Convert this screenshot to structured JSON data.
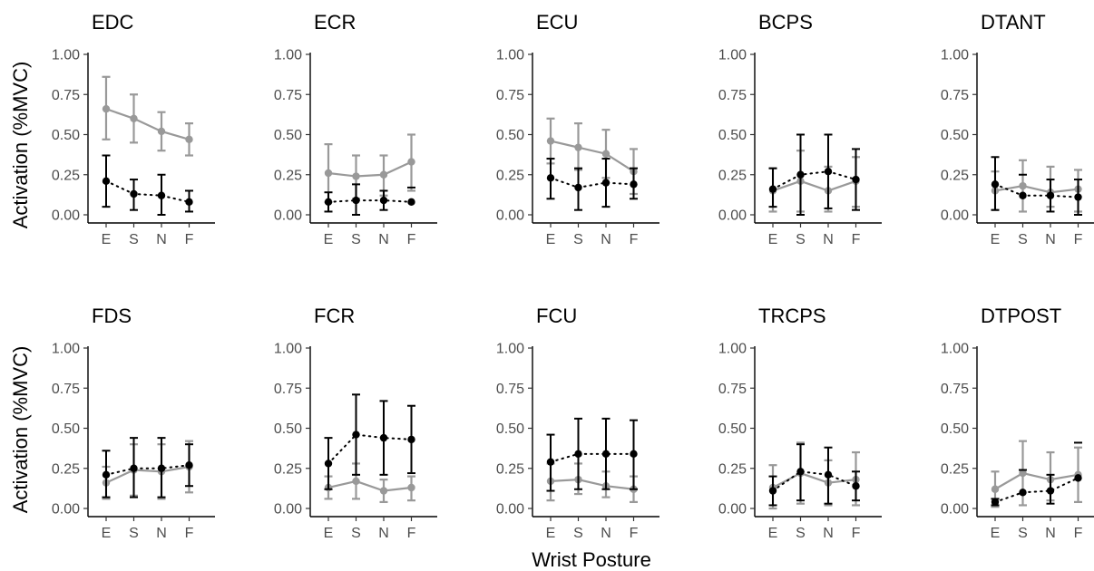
{
  "figure": {
    "ylabel": "Activation (%MVC)",
    "xlabel": "Wrist Posture"
  },
  "colors": {
    "light_series": "#999999",
    "dark_series": "#000000"
  },
  "chart_data": [
    {
      "type": "line",
      "title": "EDC",
      "categories": [
        "E",
        "S",
        "N",
        "F"
      ],
      "ylim": [
        0,
        1
      ],
      "yticks": [
        "0.00",
        "0.25",
        "0.50",
        "0.75",
        "1.00"
      ],
      "grid": false,
      "series": [
        {
          "style": "solid",
          "color": "#999999",
          "values": [
            0.66,
            0.6,
            0.52,
            0.47
          ],
          "err_low": [
            0.47,
            0.45,
            0.4,
            0.37
          ],
          "err_high": [
            0.86,
            0.75,
            0.64,
            0.57
          ]
        },
        {
          "style": "dotted",
          "color": "#000000",
          "values": [
            0.21,
            0.13,
            0.12,
            0.08
          ],
          "err_low": [
            0.05,
            0.03,
            0.0,
            0.02
          ],
          "err_high": [
            0.37,
            0.22,
            0.25,
            0.15
          ]
        }
      ]
    },
    {
      "type": "line",
      "title": "ECR",
      "categories": [
        "E",
        "S",
        "N",
        "F"
      ],
      "ylim": [
        0,
        1
      ],
      "yticks": [
        "0.00",
        "0.25",
        "0.50",
        "0.75",
        "1.00"
      ],
      "grid": false,
      "series": [
        {
          "style": "solid",
          "color": "#999999",
          "values": [
            0.26,
            0.24,
            0.25,
            0.33
          ],
          "err_low": [
            0.08,
            0.1,
            0.12,
            0.15
          ],
          "err_high": [
            0.44,
            0.37,
            0.37,
            0.5
          ]
        },
        {
          "style": "dotted",
          "color": "#000000",
          "values": [
            0.08,
            0.09,
            0.09,
            0.08
          ],
          "err_low": [
            0.02,
            0.0,
            0.03,
            null
          ],
          "err_high": [
            0.14,
            0.19,
            0.15,
            0.17
          ]
        }
      ]
    },
    {
      "type": "line",
      "title": "ECU",
      "categories": [
        "E",
        "S",
        "N",
        "F"
      ],
      "ylim": [
        0,
        1
      ],
      "yticks": [
        "0.00",
        "0.25",
        "0.50",
        "0.75",
        "1.00"
      ],
      "grid": false,
      "series": [
        {
          "style": "solid",
          "color": "#999999",
          "values": [
            0.46,
            0.42,
            0.38,
            0.27
          ],
          "err_low": [
            0.32,
            0.28,
            0.23,
            0.13
          ],
          "err_high": [
            0.6,
            0.57,
            0.53,
            0.41
          ]
        },
        {
          "style": "dotted",
          "color": "#000000",
          "values": [
            0.23,
            0.17,
            0.2,
            0.19
          ],
          "err_low": [
            0.1,
            0.03,
            0.05,
            0.1
          ],
          "err_high": [
            0.35,
            0.29,
            0.35,
            0.29
          ]
        }
      ]
    },
    {
      "type": "line",
      "title": "BCPS",
      "categories": [
        "E",
        "S",
        "N",
        "F"
      ],
      "ylim": [
        0,
        1
      ],
      "yticks": [
        "0.00",
        "0.25",
        "0.50",
        "0.75",
        "1.00"
      ],
      "grid": false,
      "series": [
        {
          "style": "solid",
          "color": "#999999",
          "values": [
            0.15,
            0.21,
            0.15,
            0.21
          ],
          "err_low": [
            0.02,
            0.02,
            0.02,
            0.05
          ],
          "err_high": [
            0.29,
            0.4,
            0.3,
            0.36
          ]
        },
        {
          "style": "dotted",
          "color": "#000000",
          "values": [
            0.16,
            0.25,
            0.27,
            0.22
          ],
          "err_low": [
            0.05,
            0.0,
            0.04,
            0.03
          ],
          "err_high": [
            0.29,
            0.5,
            0.5,
            0.41
          ]
        }
      ]
    },
    {
      "type": "line",
      "title": "DTANT",
      "categories": [
        "E",
        "S",
        "N",
        "F"
      ],
      "ylim": [
        0,
        1
      ],
      "yticks": [
        "0.00",
        "0.25",
        "0.50",
        "0.75",
        "1.00"
      ],
      "grid": false,
      "series": [
        {
          "style": "solid",
          "color": "#999999",
          "values": [
            0.15,
            0.18,
            0.14,
            0.16
          ],
          "err_low": [
            0.03,
            0.02,
            0.05,
            0.02
          ],
          "err_high": [
            0.27,
            0.34,
            0.3,
            0.28
          ]
        },
        {
          "style": "dotted",
          "color": "#000000",
          "values": [
            0.19,
            0.12,
            0.12,
            0.11
          ],
          "err_low": [
            0.03,
            null,
            0.02,
            0.0
          ],
          "err_high": [
            0.36,
            0.25,
            0.22,
            0.22
          ]
        }
      ]
    },
    {
      "type": "line",
      "title": "FDS",
      "categories": [
        "E",
        "S",
        "N",
        "F"
      ],
      "ylim": [
        0,
        1
      ],
      "yticks": [
        "0.00",
        "0.25",
        "0.50",
        "0.75",
        "1.00"
      ],
      "grid": false,
      "series": [
        {
          "style": "solid",
          "color": "#999999",
          "values": [
            0.16,
            0.24,
            0.23,
            0.26
          ],
          "err_low": [
            0.06,
            0.08,
            0.06,
            0.1
          ],
          "err_high": [
            0.26,
            0.4,
            0.4,
            0.42
          ]
        },
        {
          "style": "dotted",
          "color": "#000000",
          "values": [
            0.21,
            0.25,
            0.25,
            0.27
          ],
          "err_low": [
            0.07,
            0.07,
            0.07,
            0.14
          ],
          "err_high": [
            0.36,
            0.44,
            0.44,
            0.4
          ]
        }
      ]
    },
    {
      "type": "line",
      "title": "FCR",
      "categories": [
        "E",
        "S",
        "N",
        "F"
      ],
      "ylim": [
        0,
        1
      ],
      "yticks": [
        "0.00",
        "0.25",
        "0.50",
        "0.75",
        "1.00"
      ],
      "grid": false,
      "series": [
        {
          "style": "solid",
          "color": "#999999",
          "values": [
            0.13,
            0.17,
            0.11,
            0.13
          ],
          "err_low": [
            0.06,
            0.06,
            0.04,
            0.05
          ],
          "err_high": [
            0.2,
            0.28,
            0.18,
            0.2
          ]
        },
        {
          "style": "dotted",
          "color": "#000000",
          "values": [
            0.28,
            0.46,
            0.44,
            0.43
          ],
          "err_low": [
            0.12,
            0.21,
            0.21,
            0.22
          ],
          "err_high": [
            0.44,
            0.71,
            0.67,
            0.64
          ]
        }
      ]
    },
    {
      "type": "line",
      "title": "FCU",
      "categories": [
        "E",
        "S",
        "N",
        "F"
      ],
      "ylim": [
        0,
        1
      ],
      "yticks": [
        "0.00",
        "0.25",
        "0.50",
        "0.75",
        "1.00"
      ],
      "grid": false,
      "series": [
        {
          "style": "solid",
          "color": "#999999",
          "values": [
            0.17,
            0.18,
            0.14,
            0.12
          ],
          "err_low": [
            0.05,
            0.09,
            0.07,
            0.04
          ],
          "err_high": [
            0.28,
            0.28,
            0.23,
            0.2
          ]
        },
        {
          "style": "dotted",
          "color": "#000000",
          "values": [
            0.29,
            0.34,
            0.34,
            0.34
          ],
          "err_low": [
            0.11,
            0.12,
            0.12,
            0.12
          ],
          "err_high": [
            0.46,
            0.56,
            0.56,
            0.55
          ]
        }
      ]
    },
    {
      "type": "line",
      "title": "TRCPS",
      "categories": [
        "E",
        "S",
        "N",
        "F"
      ],
      "ylim": [
        0,
        1
      ],
      "yticks": [
        "0.00",
        "0.25",
        "0.50",
        "0.75",
        "1.00"
      ],
      "grid": false,
      "series": [
        {
          "style": "solid",
          "color": "#999999",
          "values": [
            0.13,
            0.22,
            0.16,
            0.18
          ],
          "err_low": [
            0.0,
            0.03,
            0.02,
            0.02
          ],
          "err_high": [
            0.27,
            0.41,
            0.3,
            0.35
          ]
        },
        {
          "style": "dotted",
          "color": "#000000",
          "values": [
            0.11,
            0.23,
            0.21,
            0.14
          ],
          "err_low": [
            0.02,
            0.05,
            0.03,
            0.05
          ],
          "err_high": [
            0.2,
            0.4,
            0.38,
            0.23
          ]
        }
      ]
    },
    {
      "type": "line",
      "title": "DTPOST",
      "categories": [
        "E",
        "S",
        "N",
        "F"
      ],
      "ylim": [
        0,
        1
      ],
      "yticks": [
        "0.00",
        "0.25",
        "0.50",
        "0.75",
        "1.00"
      ],
      "grid": false,
      "series": [
        {
          "style": "solid",
          "color": "#999999",
          "values": [
            0.12,
            0.22,
            0.18,
            0.21
          ],
          "err_low": [
            0.01,
            0.02,
            0.05,
            0.04
          ],
          "err_high": [
            0.23,
            0.42,
            0.35,
            0.38
          ]
        },
        {
          "style": "dotted",
          "color": "#000000",
          "values": [
            0.04,
            0.1,
            0.11,
            0.19
          ],
          "err_low": [
            0.02,
            null,
            0.03,
            null
          ],
          "err_high": [
            0.06,
            0.24,
            0.21,
            0.41
          ]
        }
      ]
    }
  ]
}
